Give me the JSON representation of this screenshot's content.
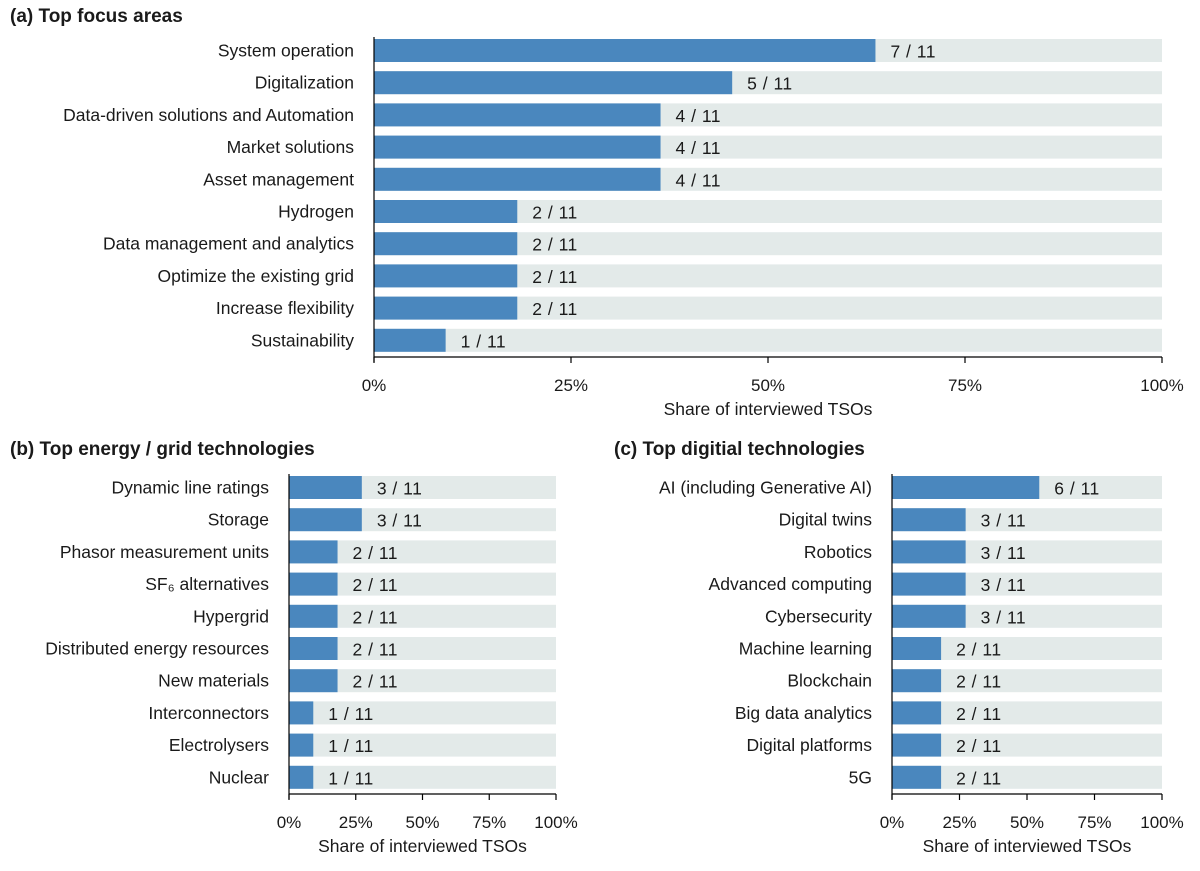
{
  "colors": {
    "bar": "#4a87be",
    "track": "#e3eae9",
    "axis": "#000000",
    "text": "#1a1a1a"
  },
  "chart_data": [
    {
      "type": "bar",
      "orientation": "horizontal",
      "title": "(a) Top focus areas",
      "categories": [
        "System operation",
        "Digitalization",
        "Data-driven solutions and Automation",
        "Market solutions",
        "Asset management",
        "Hydrogen",
        "Data management and analytics",
        "Optimize the existing grid",
        "Increase flexibility",
        "Sustainability"
      ],
      "values": [
        7,
        5,
        4,
        4,
        4,
        2,
        2,
        2,
        2,
        1
      ],
      "total": 11,
      "value_labels": [
        "7 / 11",
        "5 / 11",
        "4 / 11",
        "4 / 11",
        "4 / 11",
        "2 / 11",
        "2 / 11",
        "2 / 11",
        "2 / 11",
        "1 / 11"
      ],
      "xlabel": "Share of interviewed TSOs",
      "xticks": [
        "0%",
        "25%",
        "50%",
        "75%",
        "100%"
      ],
      "xlim": [
        0,
        100
      ]
    },
    {
      "type": "bar",
      "orientation": "horizontal",
      "title": "(b) Top energy / grid technologies",
      "categories": [
        "Dynamic line ratings",
        "Storage",
        "Phasor measurement units",
        "SF₆ alternatives",
        "Hypergrid",
        "Distributed energy resources",
        "New materials",
        "Interconnectors",
        "Electrolysers",
        "Nuclear"
      ],
      "values": [
        3,
        3,
        2,
        2,
        2,
        2,
        2,
        1,
        1,
        1
      ],
      "total": 11,
      "value_labels": [
        "3 / 11",
        "3 / 11",
        "2 / 11",
        "2 / 11",
        "2 / 11",
        "2 / 11",
        "2 / 11",
        "1 / 11",
        "1 / 11",
        "1 / 11"
      ],
      "xlabel": "Share of interviewed TSOs",
      "xticks": [
        "0%",
        "25%",
        "50%",
        "75%",
        "100%"
      ],
      "xlim": [
        0,
        100
      ]
    },
    {
      "type": "bar",
      "orientation": "horizontal",
      "title": "(c) Top digitial technologies",
      "categories": [
        "AI (including Generative AI)",
        "Digital twins",
        "Robotics",
        "Advanced computing",
        "Cybersecurity",
        "Machine learning",
        "Blockchain",
        "Big data analytics",
        "Digital platforms",
        "5G"
      ],
      "values": [
        6,
        3,
        3,
        3,
        3,
        2,
        2,
        2,
        2,
        2
      ],
      "total": 11,
      "value_labels": [
        "6 / 11",
        "3 / 11",
        "3 / 11",
        "3 / 11",
        "3 / 11",
        "2 / 11",
        "2 / 11",
        "2 / 11",
        "2 / 11",
        "2 / 11"
      ],
      "xlabel": "Share of interviewed TSOs",
      "xticks": [
        "0%",
        "25%",
        "50%",
        "75%",
        "100%"
      ],
      "xlim": [
        0,
        100
      ]
    }
  ]
}
